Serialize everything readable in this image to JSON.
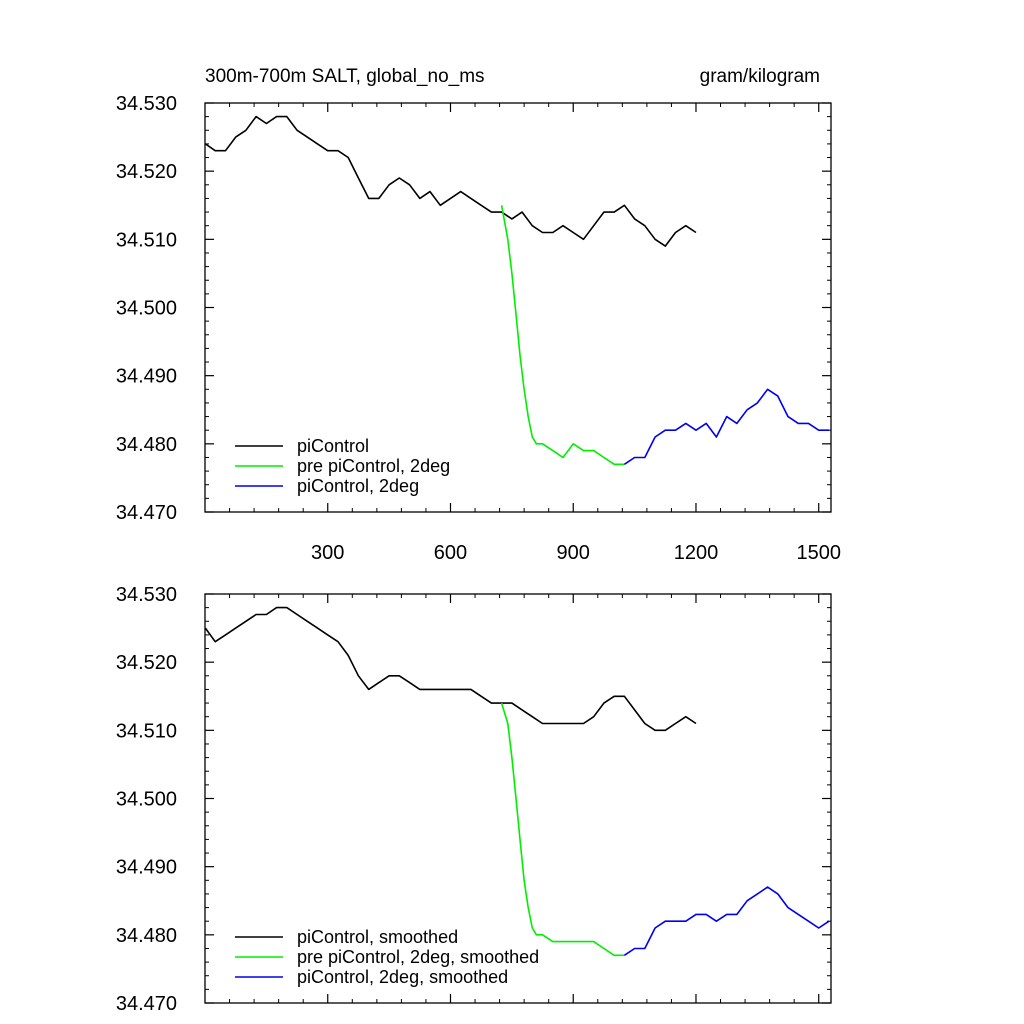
{
  "figure": {
    "title_left": "300m-700m SALT, global_no_ms",
    "title_right": "gram/kilogram"
  },
  "chart_data": [
    {
      "type": "line",
      "panel": "top",
      "xlim": [
        0,
        1530
      ],
      "ylim": [
        34.47,
        34.53
      ],
      "y_ticks": [
        "34.470",
        "34.480",
        "34.490",
        "34.500",
        "34.510",
        "34.520",
        "34.530"
      ],
      "x_ticks": [
        "300",
        "600",
        "900",
        "1200",
        "1500"
      ],
      "x_tick_values": [
        300,
        600,
        900,
        1200,
        1500
      ],
      "legend_position": "bottom-left",
      "series": [
        {
          "name": "piControl",
          "color": "#000000",
          "x": [
            1,
            25,
            50,
            75,
            100,
            125,
            150,
            175,
            200,
            225,
            250,
            275,
            300,
            325,
            350,
            375,
            400,
            425,
            450,
            475,
            500,
            525,
            550,
            575,
            600,
            625,
            650,
            675,
            700,
            725,
            750,
            775,
            800,
            825,
            850,
            875,
            900,
            925,
            950,
            975,
            1000,
            1025,
            1050,
            1075,
            1100,
            1125,
            1150,
            1175,
            1200
          ],
          "y": [
            34.524,
            34.523,
            34.523,
            34.525,
            34.526,
            34.528,
            34.527,
            34.528,
            34.528,
            34.526,
            34.525,
            34.524,
            34.523,
            34.523,
            34.522,
            34.519,
            34.516,
            34.516,
            34.518,
            34.519,
            34.518,
            34.516,
            34.517,
            34.515,
            34.516,
            34.517,
            34.516,
            34.515,
            34.514,
            34.514,
            34.513,
            34.514,
            34.512,
            34.511,
            34.511,
            34.512,
            34.511,
            34.51,
            34.512,
            34.514,
            34.514,
            34.515,
            34.513,
            34.512,
            34.51,
            34.509,
            34.511,
            34.512,
            34.511
          ]
        },
        {
          "name": "pre piControl, 2deg",
          "color": "#00ee00",
          "x": [
            725,
            740,
            750,
            760,
            770,
            780,
            790,
            800,
            810,
            825,
            850,
            875,
            900,
            925,
            950,
            975,
            1000,
            1025
          ],
          "y": [
            34.515,
            34.51,
            34.505,
            34.499,
            34.493,
            34.488,
            34.484,
            34.481,
            34.48,
            34.48,
            34.479,
            34.478,
            34.48,
            34.479,
            34.479,
            34.478,
            34.477,
            34.477
          ]
        },
        {
          "name": "piControl, 2deg",
          "color": "#0000ee",
          "x": [
            1025,
            1050,
            1075,
            1100,
            1125,
            1150,
            1175,
            1200,
            1225,
            1250,
            1275,
            1300,
            1325,
            1350,
            1375,
            1400,
            1425,
            1450,
            1475,
            1500,
            1525
          ],
          "y": [
            34.477,
            34.478,
            34.478,
            34.481,
            34.482,
            34.482,
            34.483,
            34.482,
            34.483,
            34.481,
            34.484,
            34.483,
            34.485,
            34.486,
            34.488,
            34.487,
            34.484,
            34.483,
            34.483,
            34.482,
            34.482
          ]
        }
      ]
    },
    {
      "type": "line",
      "panel": "bottom",
      "xlim": [
        0,
        1530
      ],
      "ylim": [
        34.47,
        34.53
      ],
      "y_ticks": [
        "34.470",
        "34.480",
        "34.490",
        "34.500",
        "34.510",
        "34.520",
        "34.530"
      ],
      "legend_position": "bottom-left",
      "series": [
        {
          "name": "piControl, smoothed",
          "color": "#000000",
          "x": [
            1,
            25,
            50,
            75,
            100,
            125,
            150,
            175,
            200,
            225,
            250,
            275,
            300,
            325,
            350,
            375,
            400,
            425,
            450,
            475,
            500,
            525,
            550,
            575,
            600,
            625,
            650,
            675,
            700,
            725,
            750,
            775,
            800,
            825,
            850,
            875,
            900,
            925,
            950,
            975,
            1000,
            1025,
            1050,
            1075,
            1100,
            1125,
            1150,
            1175,
            1200
          ],
          "y": [
            34.525,
            34.523,
            34.524,
            34.525,
            34.526,
            34.527,
            34.527,
            34.528,
            34.528,
            34.527,
            34.526,
            34.525,
            34.524,
            34.523,
            34.521,
            34.518,
            34.516,
            34.517,
            34.518,
            34.518,
            34.517,
            34.516,
            34.516,
            34.516,
            34.516,
            34.516,
            34.516,
            34.515,
            34.514,
            34.514,
            34.514,
            34.513,
            34.512,
            34.511,
            34.511,
            34.511,
            34.511,
            34.511,
            34.512,
            34.514,
            34.515,
            34.515,
            34.513,
            34.511,
            34.51,
            34.51,
            34.511,
            34.512,
            34.511
          ]
        },
        {
          "name": "pre piControl, 2deg, smoothed",
          "color": "#00ee00",
          "x": [
            725,
            740,
            750,
            760,
            770,
            780,
            790,
            800,
            810,
            825,
            850,
            875,
            900,
            925,
            950,
            975,
            1000,
            1025
          ],
          "y": [
            34.514,
            34.511,
            34.506,
            34.5,
            34.494,
            34.488,
            34.484,
            34.481,
            34.48,
            34.48,
            34.479,
            34.479,
            34.479,
            34.479,
            34.479,
            34.478,
            34.477,
            34.477
          ]
        },
        {
          "name": "piControl, 2deg, smoothed",
          "color": "#0000ee",
          "x": [
            1025,
            1050,
            1075,
            1100,
            1125,
            1150,
            1175,
            1200,
            1225,
            1250,
            1275,
            1300,
            1325,
            1350,
            1375,
            1400,
            1425,
            1450,
            1475,
            1500,
            1525
          ],
          "y": [
            34.477,
            34.478,
            34.478,
            34.481,
            34.482,
            34.482,
            34.482,
            34.483,
            34.483,
            34.482,
            34.483,
            34.483,
            34.485,
            34.486,
            34.487,
            34.486,
            34.484,
            34.483,
            34.482,
            34.481,
            34.482
          ]
        }
      ]
    }
  ]
}
